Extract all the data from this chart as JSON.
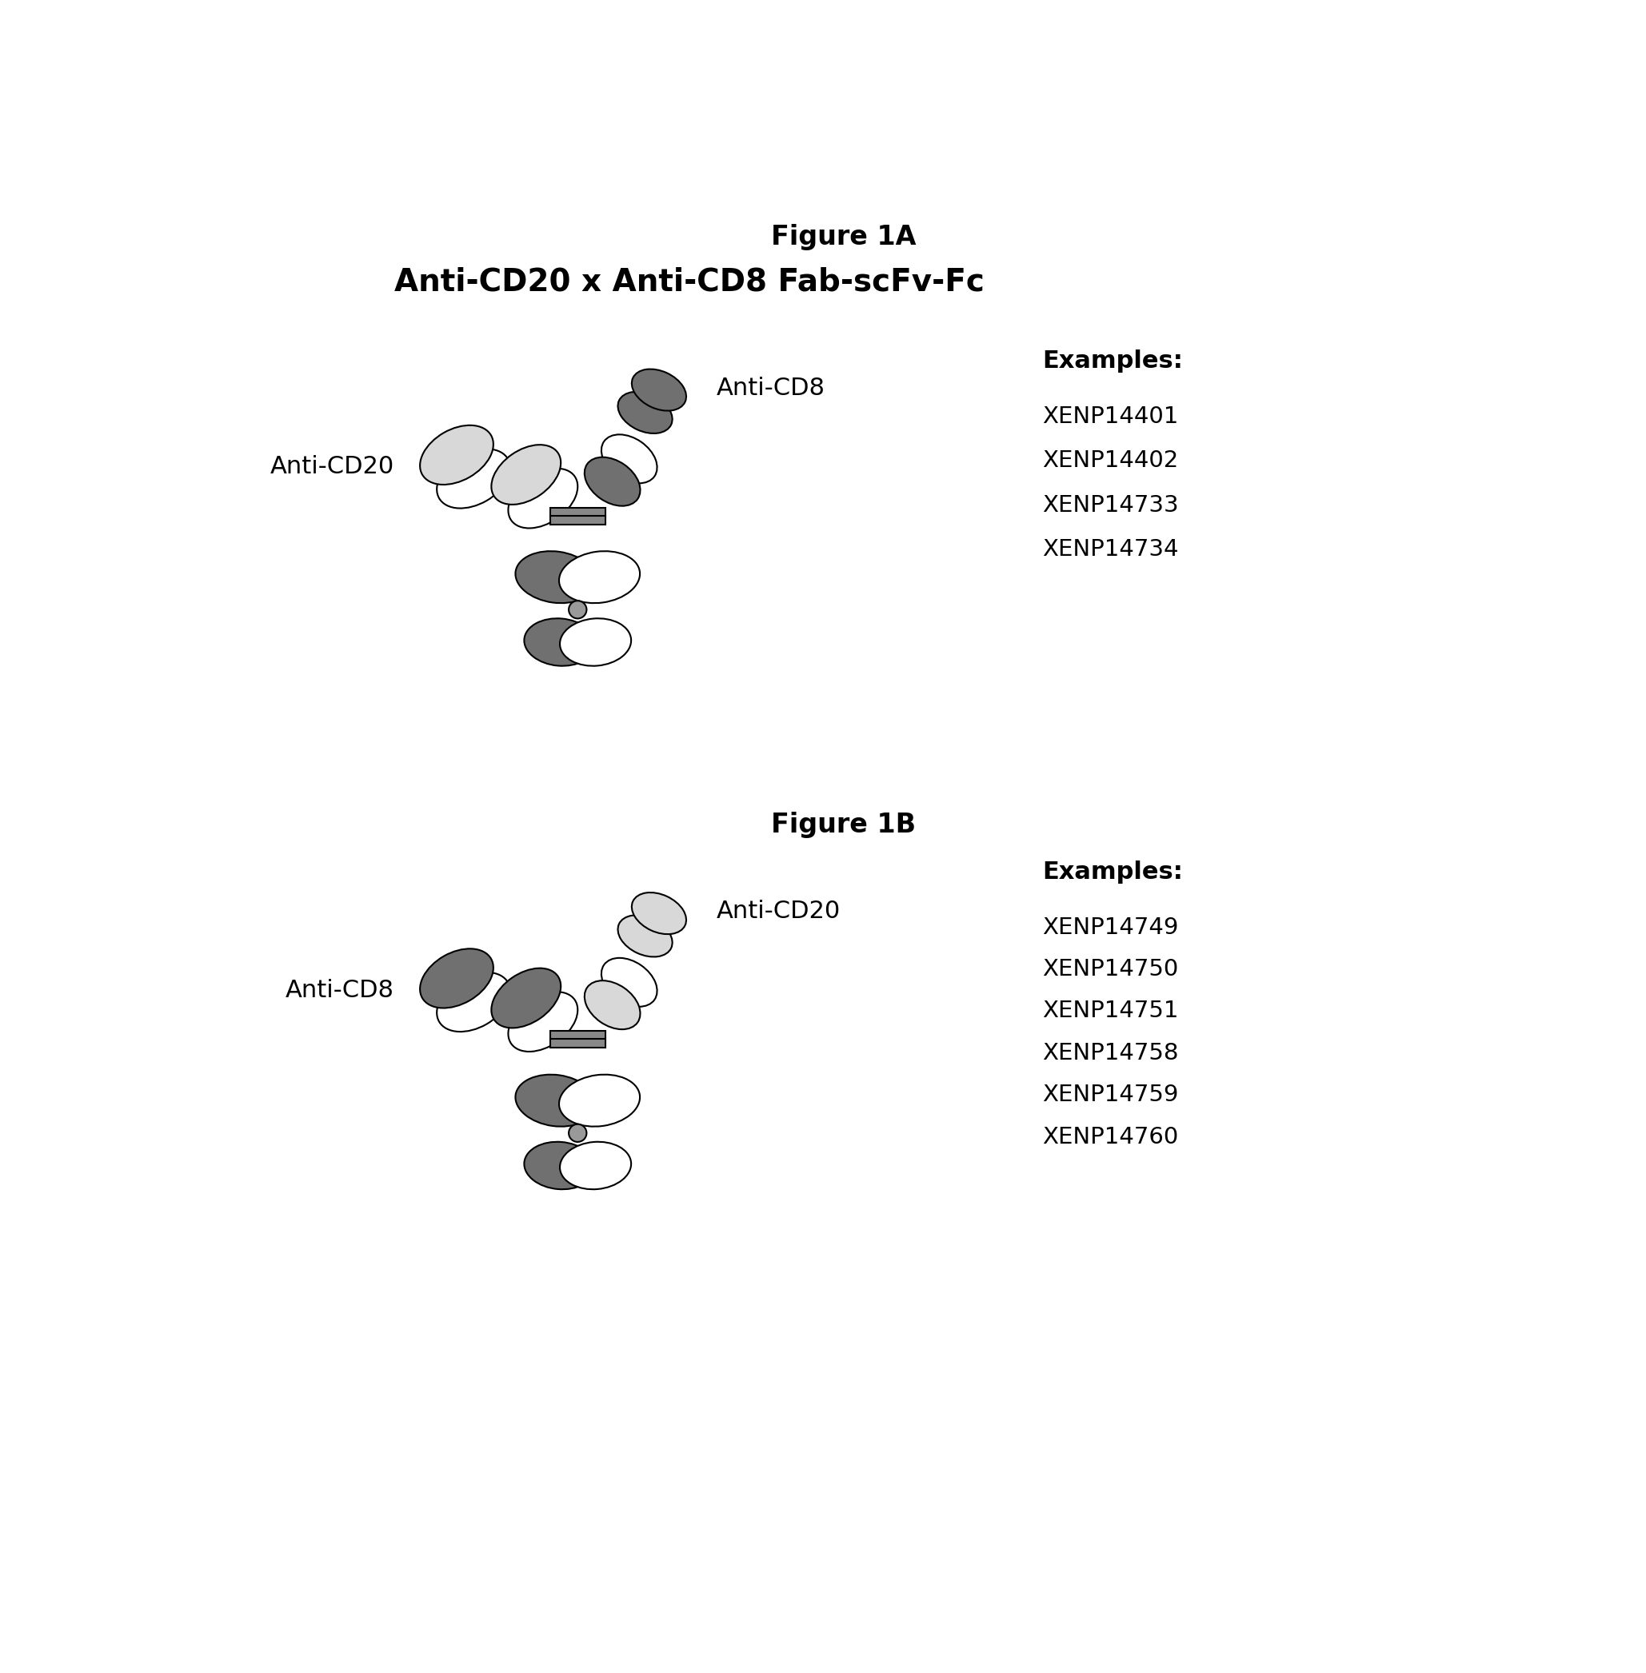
{
  "fig_title_A": "Figure 1A",
  "subtitle_A": "Anti-CD20 x Anti-CD8 Fab-scFv-Fc",
  "fig_title_B": "Figure 1B",
  "label_antiCD8_A": "Anti-CD8",
  "label_antiCD20_A": "Anti-CD20",
  "label_antiCD20_B": "Anti-CD20",
  "label_antiCD8_B": "Anti-CD8",
  "examples_A_title": "Examples:",
  "examples_A": [
    "XENP14401",
    "XENP14402",
    "XENP14733",
    "XENP14734"
  ],
  "examples_B_title": "Examples:",
  "examples_B": [
    "XENP14749",
    "XENP14750",
    "XENP14751",
    "XENP14758",
    "XENP14759",
    "XENP14760"
  ],
  "bg_color": "#ffffff",
  "text_color": "#000000",
  "ab_outline": "#000000",
  "ab_fill_light": "#d8d8d8",
  "ab_fill_dark": "#707070",
  "ab_fill_white": "#ffffff"
}
